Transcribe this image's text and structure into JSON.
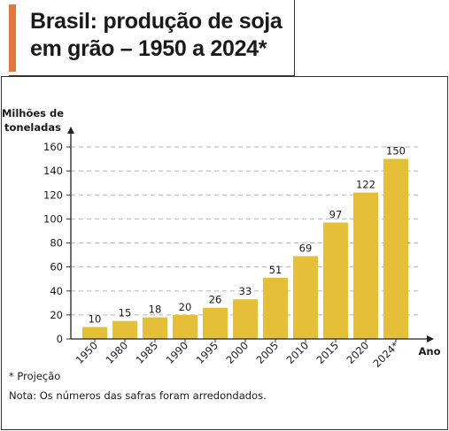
{
  "title": "Brasil: produção de soja em grão – 1950 a 2024*",
  "title_lines": [
    "Brasil: produção de soja",
    "em grão – 1950 a 2024*"
  ],
  "chart_data": {
    "type": "bar",
    "categories": [
      "1950",
      "1980",
      "1985",
      "1990",
      "1995",
      "2000",
      "2005",
      "2010",
      "2015",
      "2020",
      "2024*"
    ],
    "values": [
      10,
      15,
      18,
      20,
      26,
      33,
      51,
      69,
      97,
      122,
      150
    ],
    "data_labels": [
      "10",
      "15",
      "18",
      "20",
      "26",
      "33",
      "51",
      "69",
      "97",
      "122",
      "150"
    ],
    "ylabel_lines": [
      "Milhões de",
      "toneladas"
    ],
    "xlabel": "Ano",
    "ylim": [
      0,
      160
    ],
    "yticks": [
      0,
      20,
      40,
      60,
      80,
      100,
      120,
      140,
      160
    ],
    "grid": true,
    "bar_color": "#e5bf37"
  },
  "footnotes": {
    "projection": "* Projeção",
    "note": "Nota: Os números das safras foram arredondados."
  }
}
